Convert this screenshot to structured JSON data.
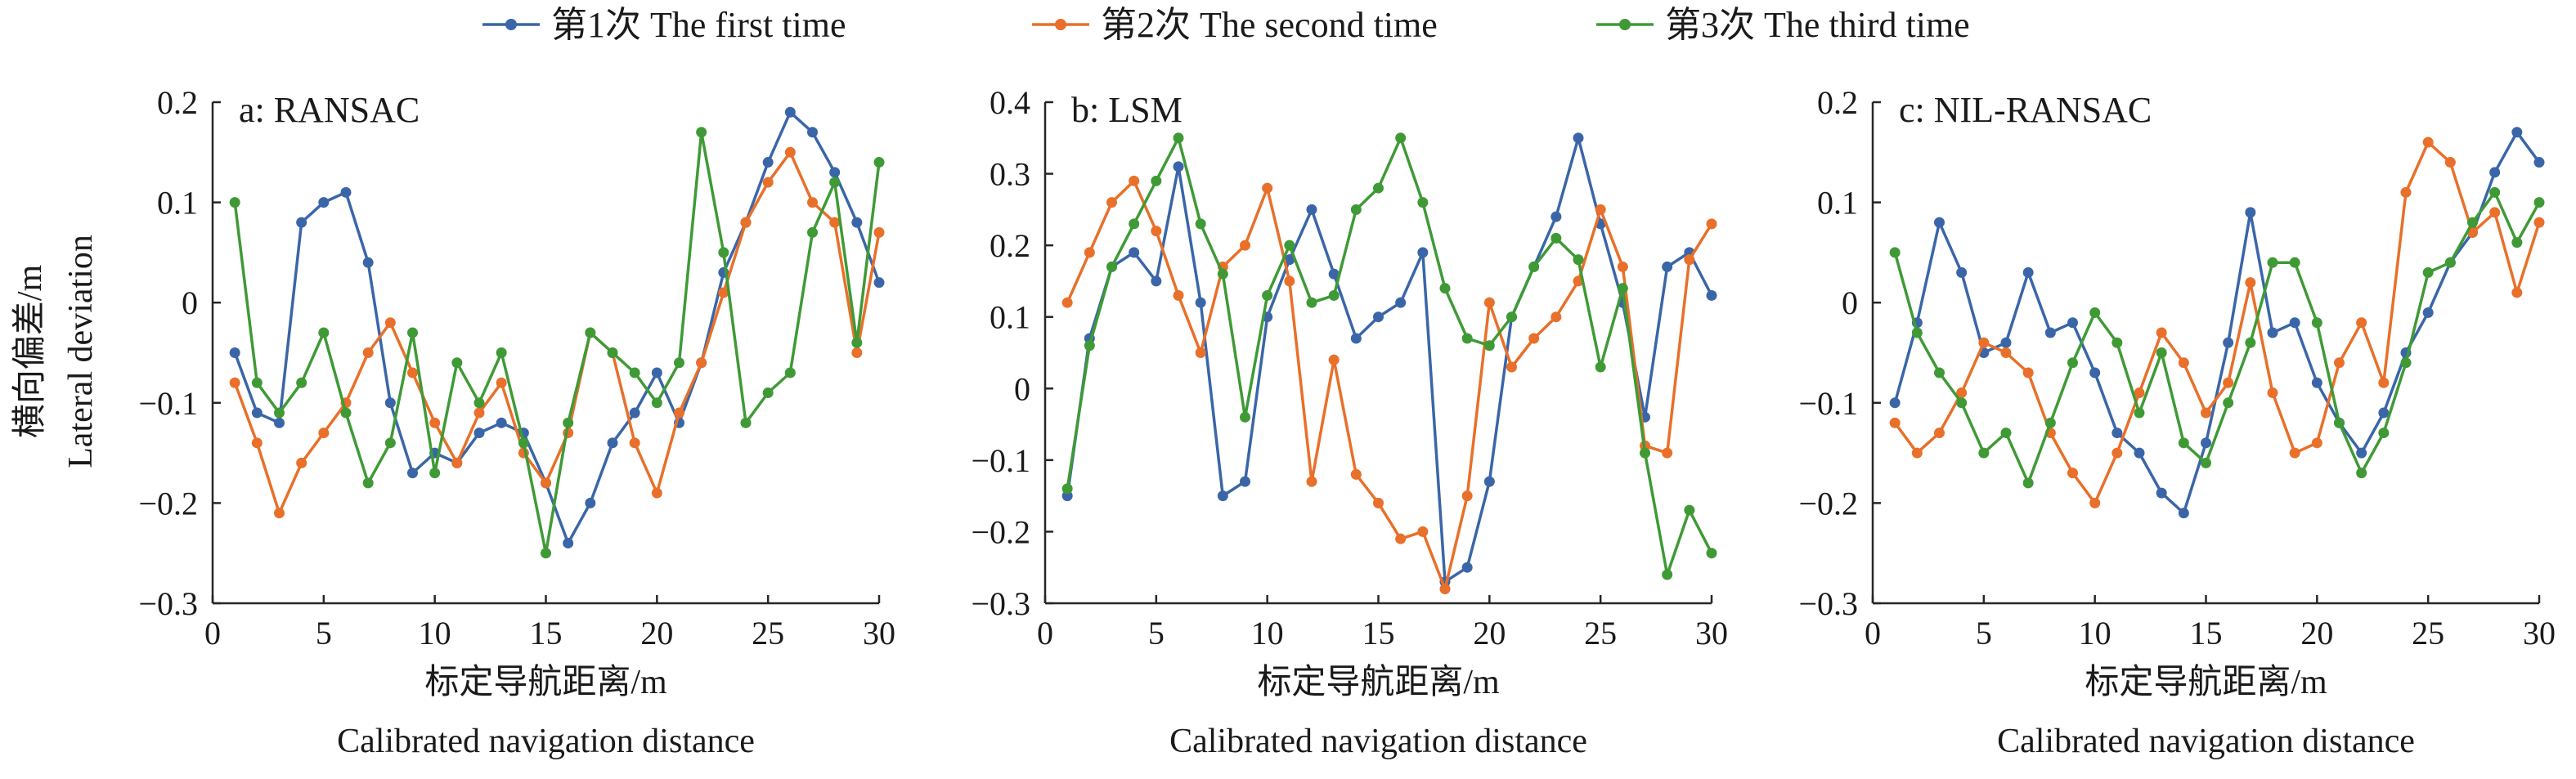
{
  "legend": {
    "items": [
      {
        "label": "第1次 The first time",
        "color": "#3a66a8"
      },
      {
        "label": "第2次 The second time",
        "color": "#e8702a"
      },
      {
        "label": "第3次 The third time",
        "color": "#3f9a36"
      }
    ]
  },
  "chart_data": [
    {
      "type": "line",
      "panel_label": "a: RANSAC",
      "xlabel_cn": "标定导航距离/m",
      "xlabel_en": "Calibrated navigation distance",
      "ylabel_cn": "横向偏差/m",
      "ylabel_en": "Lateral deviation",
      "xlim": [
        0,
        30
      ],
      "ylim": [
        -0.3,
        0.2
      ],
      "xticks": [
        "0",
        "5",
        "10",
        "15",
        "20",
        "25",
        "30"
      ],
      "yticks": [
        "0.2",
        "0.1",
        "0",
        "−0.1",
        "−0.2",
        "−0.3"
      ],
      "grid": false,
      "legend_position": "top-center",
      "x": [
        1,
        2,
        3,
        4,
        5,
        6,
        7,
        8,
        9,
        10,
        11,
        12,
        13,
        14,
        15,
        16,
        17,
        18,
        19,
        20,
        21,
        22,
        23,
        24,
        25,
        26,
        27,
        28,
        29,
        30
      ],
      "series": [
        {
          "name": "第1次 The first time",
          "color": "#3a66a8",
          "values": [
            -0.05,
            -0.11,
            -0.12,
            0.08,
            0.1,
            0.11,
            0.04,
            -0.1,
            -0.17,
            -0.15,
            -0.16,
            -0.13,
            -0.12,
            -0.13,
            -0.18,
            -0.24,
            -0.2,
            -0.14,
            -0.11,
            -0.07,
            -0.12,
            -0.06,
            0.03,
            0.08,
            0.14,
            0.19,
            0.17,
            0.13,
            0.08,
            0.02
          ]
        },
        {
          "name": "第2次 The second time",
          "color": "#e8702a",
          "values": [
            -0.08,
            -0.14,
            -0.21,
            -0.16,
            -0.13,
            -0.1,
            -0.05,
            -0.02,
            -0.07,
            -0.12,
            -0.16,
            -0.11,
            -0.08,
            -0.15,
            -0.18,
            -0.13,
            -0.03,
            -0.05,
            -0.14,
            -0.19,
            -0.11,
            -0.06,
            0.01,
            0.08,
            0.12,
            0.15,
            0.1,
            0.08,
            -0.05,
            0.07
          ]
        },
        {
          "name": "第3次 The third time",
          "color": "#3f9a36",
          "values": [
            0.1,
            -0.08,
            -0.11,
            -0.08,
            -0.03,
            -0.11,
            -0.18,
            -0.14,
            -0.03,
            -0.17,
            -0.06,
            -0.1,
            -0.05,
            -0.14,
            -0.25,
            -0.12,
            -0.03,
            -0.05,
            -0.07,
            -0.1,
            -0.06,
            0.17,
            0.05,
            -0.12,
            -0.09,
            -0.07,
            0.07,
            0.12,
            -0.04,
            0.14
          ]
        }
      ]
    },
    {
      "type": "line",
      "panel_label": "b: LSM",
      "xlabel_cn": "标定导航距离/m",
      "xlabel_en": "Calibrated navigation distance",
      "xlim": [
        0,
        30
      ],
      "ylim": [
        -0.3,
        0.4
      ],
      "xticks": [
        "0",
        "5",
        "10",
        "15",
        "20",
        "25",
        "30"
      ],
      "yticks": [
        "0.4",
        "0.3",
        "0.2",
        "0.1",
        "0",
        "−0.1",
        "−0.2",
        "−0.3"
      ],
      "grid": false,
      "x": [
        1,
        2,
        3,
        4,
        5,
        6,
        7,
        8,
        9,
        10,
        11,
        12,
        13,
        14,
        15,
        16,
        17,
        18,
        19,
        20,
        21,
        22,
        23,
        24,
        25,
        26,
        27,
        28,
        29,
        30
      ],
      "series": [
        {
          "name": "第1次 The first time",
          "color": "#3a66a8",
          "values": [
            -0.15,
            0.07,
            0.17,
            0.19,
            0.15,
            0.31,
            0.12,
            -0.15,
            -0.13,
            0.1,
            0.18,
            0.25,
            0.16,
            0.07,
            0.1,
            0.12,
            0.19,
            -0.27,
            -0.25,
            -0.13,
            0.1,
            0.17,
            0.24,
            0.35,
            0.23,
            0.12,
            -0.04,
            0.17,
            0.19,
            0.13
          ]
        },
        {
          "name": "第2次 The second time",
          "color": "#e8702a",
          "values": [
            0.12,
            0.19,
            0.26,
            0.29,
            0.22,
            0.13,
            0.05,
            0.17,
            0.2,
            0.28,
            0.15,
            -0.13,
            0.04,
            -0.12,
            -0.16,
            -0.21,
            -0.2,
            -0.28,
            -0.15,
            0.12,
            0.03,
            0.07,
            0.1,
            0.15,
            0.25,
            0.17,
            -0.08,
            -0.09,
            0.18,
            0.23
          ]
        },
        {
          "name": "第3次 The third time",
          "color": "#3f9a36",
          "values": [
            -0.14,
            0.06,
            0.17,
            0.23,
            0.29,
            0.35,
            0.23,
            0.16,
            -0.04,
            0.13,
            0.2,
            0.12,
            0.13,
            0.25,
            0.28,
            0.35,
            0.26,
            0.14,
            0.07,
            0.06,
            0.1,
            0.17,
            0.21,
            0.18,
            0.03,
            0.14,
            -0.09,
            -0.26,
            -0.17,
            -0.23
          ]
        }
      ]
    },
    {
      "type": "line",
      "panel_label": "c: NIL-RANSAC",
      "xlabel_cn": "标定导航距离/m",
      "xlabel_en": "Calibrated navigation distance",
      "xlim": [
        0,
        30
      ],
      "ylim": [
        -0.3,
        0.2
      ],
      "xticks": [
        "0",
        "5",
        "10",
        "15",
        "20",
        "25",
        "30"
      ],
      "yticks": [
        "0.2",
        "0.1",
        "0",
        "−0.1",
        "−0.2",
        "−0.3"
      ],
      "grid": false,
      "x": [
        1,
        2,
        3,
        4,
        5,
        6,
        7,
        8,
        9,
        10,
        11,
        12,
        13,
        14,
        15,
        16,
        17,
        18,
        19,
        20,
        21,
        22,
        23,
        24,
        25,
        26,
        27,
        28,
        29,
        30
      ],
      "series": [
        {
          "name": "第1次 The first time",
          "color": "#3a66a8",
          "values": [
            -0.1,
            -0.02,
            0.08,
            0.03,
            -0.05,
            -0.04,
            0.03,
            -0.03,
            -0.02,
            -0.07,
            -0.13,
            -0.15,
            -0.19,
            -0.21,
            -0.14,
            -0.04,
            0.09,
            -0.03,
            -0.02,
            -0.08,
            -0.12,
            -0.15,
            -0.11,
            -0.05,
            -0.01,
            0.04,
            0.07,
            0.13,
            0.17,
            0.14
          ]
        },
        {
          "name": "第2次 The second time",
          "color": "#e8702a",
          "values": [
            -0.12,
            -0.15,
            -0.13,
            -0.09,
            -0.04,
            -0.05,
            -0.07,
            -0.13,
            -0.17,
            -0.2,
            -0.15,
            -0.09,
            -0.03,
            -0.06,
            -0.11,
            -0.08,
            0.02,
            -0.09,
            -0.15,
            -0.14,
            -0.06,
            -0.02,
            -0.08,
            0.11,
            0.16,
            0.14,
            0.07,
            0.09,
            0.01,
            0.08
          ]
        },
        {
          "name": "第3次 The third time",
          "color": "#3f9a36",
          "values": [
            0.05,
            -0.03,
            -0.07,
            -0.1,
            -0.15,
            -0.13,
            -0.18,
            -0.12,
            -0.06,
            -0.01,
            -0.04,
            -0.11,
            -0.05,
            -0.14,
            -0.16,
            -0.1,
            -0.04,
            0.04,
            0.04,
            -0.02,
            -0.12,
            -0.17,
            -0.13,
            -0.06,
            0.03,
            0.04,
            0.08,
            0.11,
            0.06,
            0.1
          ]
        }
      ]
    }
  ]
}
